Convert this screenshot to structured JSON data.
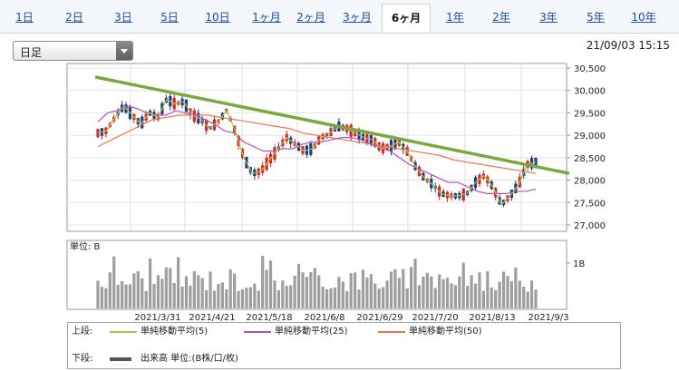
{
  "tabs": [
    {
      "label": "1日"
    },
    {
      "label": "2日"
    },
    {
      "label": "3日"
    },
    {
      "label": "5日"
    },
    {
      "label": "10日"
    },
    {
      "label": "1ヶ月"
    },
    {
      "label": "2ヶ月"
    },
    {
      "label": "3ヶ月"
    },
    {
      "label": "6ヶ月",
      "active": true
    },
    {
      "label": "1年"
    },
    {
      "label": "2年"
    },
    {
      "label": "3年"
    },
    {
      "label": "5年"
    },
    {
      "label": "10年"
    }
  ],
  "period_select": {
    "value": "日足"
  },
  "timestamp": "21/09/03 15:15",
  "colors": {
    "up": "#d9262c",
    "down": "#1d3a8a",
    "ma5": "#a8c83c",
    "ma25": "#b24fc8",
    "ma50": "#e8774a",
    "trendline": "#7aa83c",
    "volume": "#9e9e9e"
  },
  "chart_data": {
    "type": "line",
    "price_axis": {
      "ticks": [
        "30,500",
        "30,000",
        "29,500",
        "29,000",
        "28,500",
        "28,000",
        "27,500",
        "27,000"
      ],
      "ylim": [
        27000,
        30500
      ]
    },
    "volume_axis": {
      "unit_label": "単位: B",
      "tick_label": "1B"
    },
    "x_ticks": [
      "2021/3/31",
      "2021/4/21",
      "2021/5/18",
      "2021/6/8",
      "2021/6/29",
      "2021/7/20",
      "2021/8/13",
      "2021/9/3"
    ],
    "series": [
      {
        "name": "単純移動平均(5)",
        "values": [
          29050,
          29100,
          29400,
          29650,
          29450,
          29250,
          29500,
          29400,
          29800,
          29700,
          29750,
          29450,
          29350,
          29150,
          29300,
          29550,
          29100,
          28500,
          28150,
          28200,
          28450,
          28700,
          28950,
          28800,
          28650,
          28700,
          28950,
          29050,
          29200,
          29150,
          29050,
          28950,
          28900,
          28700,
          28750,
          28850,
          28650,
          28300,
          28050,
          27900,
          27700,
          27650,
          27650,
          27700,
          27950,
          28100,
          27850,
          27450,
          27650,
          27900,
          28350,
          28400
        ]
      },
      {
        "name": "単純移動平均(25)",
        "values": [
          29300,
          29500,
          29550,
          29650,
          29600,
          29500,
          29450,
          29450,
          29550,
          29500,
          29450,
          29350,
          29250,
          29100,
          29050,
          28850,
          28750,
          28650,
          28650,
          28700,
          28700,
          28800,
          28850,
          28850,
          28900,
          28950,
          28950,
          28900,
          28800,
          28750,
          28650,
          28500,
          28350,
          28250,
          28150,
          28050,
          27950,
          27950,
          27850,
          27750,
          27700,
          27700,
          27700,
          27750,
          27750,
          27800
        ]
      },
      {
        "name": "単純移動平均(50)",
        "values": [
          28750,
          28900,
          29050,
          29200,
          29350,
          29400,
          29450,
          29450,
          29450,
          29400,
          29350,
          29300,
          29250,
          29200,
          29150,
          29050,
          29000,
          28950,
          28900,
          28850,
          28800,
          28750,
          28700,
          28650,
          28600,
          28550,
          28450,
          28400,
          28350,
          28300,
          28250,
          28200,
          28150
        ]
      }
    ],
    "trendline": {
      "start": 30300,
      "end": 28150
    },
    "volume_legend": "出来高 単位:(B株/口/枚)",
    "legend_rows": [
      {
        "label": "上段:"
      },
      {
        "label": "下段:"
      }
    ]
  }
}
